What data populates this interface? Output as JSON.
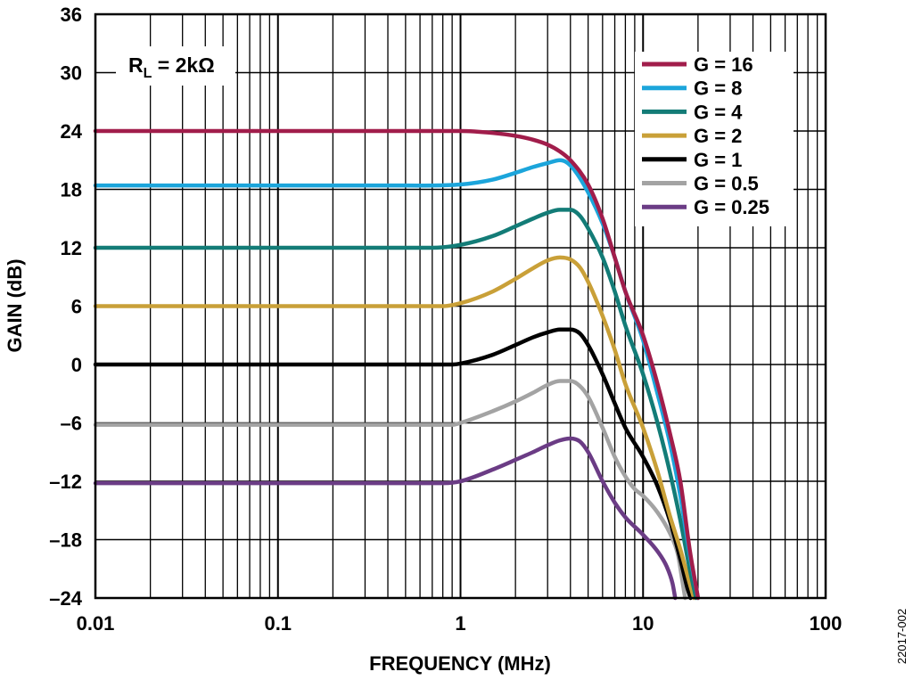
{
  "chart_data": {
    "type": "line",
    "xlabel": "FREQUENCY (MHz)",
    "ylabel": "GAIN (dB)",
    "x_scale": "log",
    "xlim": [
      0.01,
      100
    ],
    "ylim": [
      -24,
      36
    ],
    "grid": true,
    "legend_position": "top-right",
    "x_ticks": [
      0.01,
      0.1,
      1,
      10,
      100
    ],
    "x_tick_labels": [
      "0.01",
      "0.1",
      "1",
      "10",
      "100"
    ],
    "y_ticks": [
      -24,
      -18,
      -12,
      -6,
      0,
      6,
      12,
      18,
      24,
      30,
      36
    ],
    "y_tick_labels": [
      "–24",
      "–18",
      "–12",
      "–6",
      "0",
      "6",
      "12",
      "18",
      "24",
      "30",
      "36"
    ],
    "annotation": {
      "main": "R",
      "sub": "L",
      "rest": " = 2kΩ"
    },
    "figure_id": "22017-002",
    "series": [
      {
        "name": "G = 16",
        "color": "#A11D4B",
        "x": [
          0.01,
          0.5,
          1,
          1.5,
          2,
          2.5,
          3,
          3.5,
          4,
          5,
          6,
          7,
          8,
          10,
          12,
          14,
          16,
          18,
          20
        ],
        "y": [
          24,
          24,
          24,
          23.8,
          23.5,
          23.1,
          22.6,
          21.9,
          21,
          18.5,
          15,
          11,
          7.5,
          3,
          -2,
          -7,
          -12,
          -19,
          -24
        ]
      },
      {
        "name": "G = 8",
        "color": "#1CA5DB",
        "x": [
          0.01,
          0.5,
          1,
          1.5,
          2,
          2.5,
          3,
          3.5,
          3.8,
          4.2,
          5,
          6,
          7,
          8,
          10,
          12,
          14,
          16,
          18,
          20
        ],
        "y": [
          18.4,
          18.4,
          18.5,
          19,
          19.7,
          20.3,
          20.7,
          21,
          20.8,
          20,
          17.7,
          14.5,
          11,
          7.5,
          2.5,
          -3,
          -8,
          -13.5,
          -19.5,
          -24
        ]
      },
      {
        "name": "G = 4",
        "color": "#137C77",
        "x": [
          0.01,
          0.7,
          1,
          1.5,
          2,
          2.5,
          3,
          3.5,
          4,
          4.5,
          5,
          6,
          7,
          8,
          10,
          12,
          14,
          16,
          18,
          19.5
        ],
        "y": [
          12,
          12,
          12.3,
          13.2,
          14.2,
          15,
          15.6,
          15.9,
          15.9,
          15.3,
          14,
          11,
          7.5,
          4,
          -1,
          -6,
          -11,
          -16,
          -21,
          -24
        ]
      },
      {
        "name": "G = 2",
        "color": "#C9A038",
        "x": [
          0.01,
          0.8,
          1,
          1.5,
          2,
          2.5,
          3,
          3.5,
          4,
          4.5,
          5,
          6,
          7,
          8,
          10,
          12,
          14,
          16,
          18,
          19
        ],
        "y": [
          6,
          6,
          6.3,
          7.5,
          8.8,
          9.9,
          10.7,
          11,
          10.8,
          10,
          8.5,
          5,
          1.5,
          -2,
          -6.5,
          -11,
          -15.5,
          -19,
          -22.5,
          -24
        ]
      },
      {
        "name": "G = 1",
        "color": "#000000",
        "x": [
          0.01,
          0.9,
          1,
          1.5,
          2,
          2.5,
          3,
          3.5,
          4,
          4.5,
          5,
          6,
          7,
          8,
          10,
          12,
          14,
          16,
          17.5,
          18.2
        ],
        "y": [
          0,
          0,
          0.1,
          1,
          2,
          2.8,
          3.3,
          3.6,
          3.6,
          3.2,
          2,
          -1,
          -4,
          -6.5,
          -9.5,
          -12.5,
          -16,
          -20,
          -23,
          -24
        ]
      },
      {
        "name": "G = 0.5",
        "color": "#A3A3A3",
        "x": [
          0.01,
          0.9,
          1,
          1.5,
          2,
          2.5,
          3,
          3.5,
          4,
          4.5,
          5,
          6,
          7,
          8,
          9,
          10,
          12,
          14,
          15.5,
          16.5,
          17
        ],
        "y": [
          -6.2,
          -6.2,
          -6,
          -4.8,
          -3.8,
          -2.9,
          -2.1,
          -1.7,
          -1.7,
          -2.2,
          -3.3,
          -6.5,
          -9.5,
          -11.5,
          -12.8,
          -13.5,
          -15.2,
          -17.3,
          -19.5,
          -22.5,
          -24
        ]
      },
      {
        "name": "G = 0.25",
        "color": "#6B3C85",
        "x": [
          0.01,
          0.8,
          1,
          1.5,
          2,
          2.5,
          3,
          3.5,
          4,
          4.5,
          5,
          6,
          7,
          8,
          10,
          12,
          13.5,
          14.5,
          15
        ],
        "y": [
          -12.2,
          -12.2,
          -12,
          -10.8,
          -9.8,
          -9,
          -8.3,
          -7.8,
          -7.6,
          -7.9,
          -9,
          -12,
          -14.2,
          -15.7,
          -17.5,
          -19.2,
          -20.8,
          -22.5,
          -24
        ]
      }
    ]
  }
}
